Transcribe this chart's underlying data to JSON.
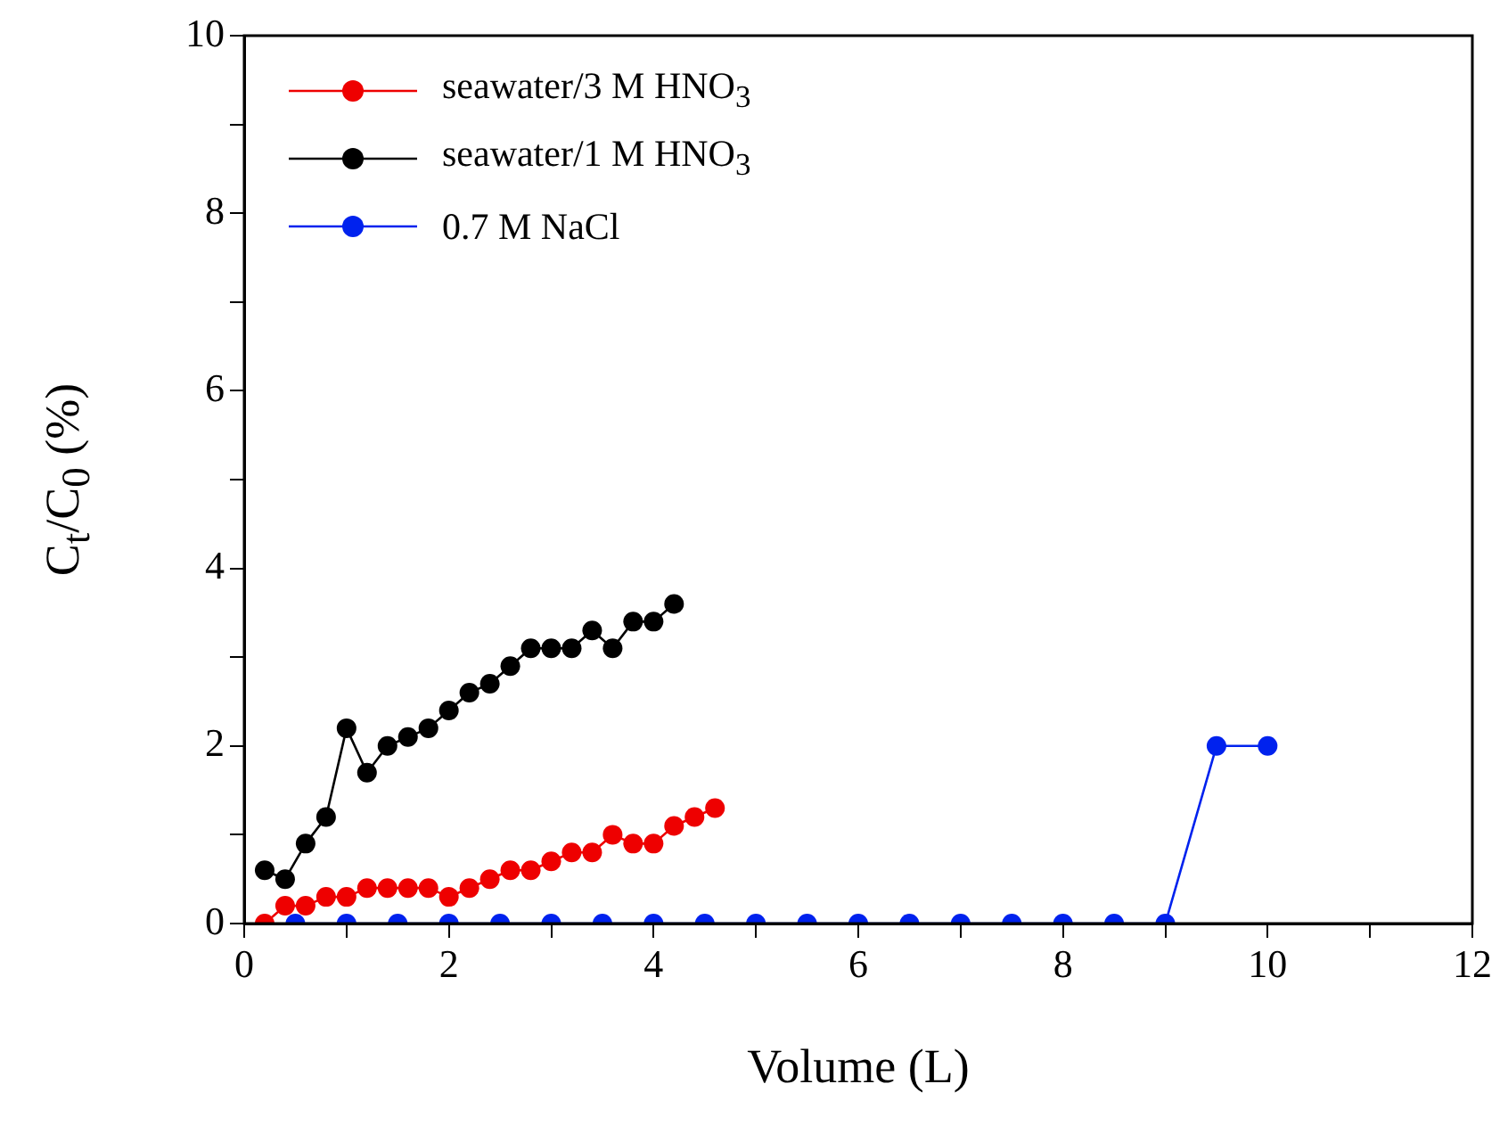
{
  "chart_data": {
    "type": "line",
    "xlabel": "Volume (L)",
    "ylabel": "C$_{t}$/C$_{0}$ (%)",
    "xlim": [
      0,
      12
    ],
    "xticks": [
      0,
      {
        "value": 1,
        "label": null
      },
      2,
      {
        "value": 3,
        "label": null
      },
      4,
      {
        "value": 5,
        "label": null
      },
      6,
      {
        "value": 7,
        "label": null
      },
      8,
      {
        "value": 9,
        "label": null
      },
      10,
      {
        "value": 11,
        "label": null
      },
      12
    ],
    "ylim": [
      0,
      10
    ],
    "yticks": [
      0,
      {
        "value": 1,
        "label": null
      },
      2,
      {
        "value": 3,
        "label": null
      },
      4,
      {
        "value": 5,
        "label": null
      },
      6,
      {
        "value": 7,
        "label": null
      },
      8,
      {
        "value": 9,
        "label": null
      },
      10
    ],
    "grid": false,
    "legend": "top left",
    "marker": "circle",
    "line_style": "solid",
    "series": [
      {
        "name": "seawater/3 M HNO$_{3}$",
        "color": "#ee0000",
        "x": [
          0.2,
          0.4,
          0.6,
          0.8,
          1.0,
          1.2,
          1.4,
          1.6,
          1.8,
          2.0,
          2.2,
          2.4,
          2.6,
          2.8,
          3.0,
          3.2,
          3.4,
          3.6,
          3.8,
          4.0,
          4.2,
          4.4,
          4.6
        ],
        "values": [
          0,
          0.2,
          0.2,
          0.3,
          0.3,
          0.4,
          0.4,
          0.4,
          0.4,
          0.3,
          0.4,
          0.5,
          0.6,
          0.6,
          0.7,
          0.8,
          0.8,
          1.0,
          0.9,
          0.9,
          1.1,
          1.2,
          1.3
        ]
      },
      {
        "name": "seawater/1 M HNO$_{3}$",
        "color": "#000000",
        "x": [
          0.2,
          0.4,
          0.6,
          0.8,
          1.0,
          1.2,
          1.4,
          1.6,
          1.8,
          2.0,
          2.2,
          2.4,
          2.6,
          2.8,
          3.0,
          3.2,
          3.4,
          3.6,
          3.8,
          4.0,
          4.2
        ],
        "values": [
          0.6,
          0.5,
          0.9,
          1.2,
          2.2,
          1.7,
          2.0,
          2.1,
          2.2,
          2.4,
          2.6,
          2.7,
          2.9,
          3.1,
          3.1,
          3.1,
          3.3,
          3.1,
          3.4,
          3.4,
          3.6
        ]
      },
      {
        "name": "0.7 M NaCl",
        "color": "#0022ee",
        "x": [
          0.5,
          1.0,
          1.5,
          2.0,
          2.5,
          3.0,
          3.5,
          4.0,
          4.5,
          5.0,
          5.5,
          6.0,
          6.5,
          7.0,
          7.5,
          8.0,
          8.5,
          9.0,
          9.5,
          10.0
        ],
        "values": [
          0,
          0,
          0,
          0,
          0,
          0,
          0,
          0,
          0,
          0,
          0,
          0,
          0,
          0,
          0,
          0,
          0,
          0,
          2,
          2
        ]
      }
    ]
  }
}
